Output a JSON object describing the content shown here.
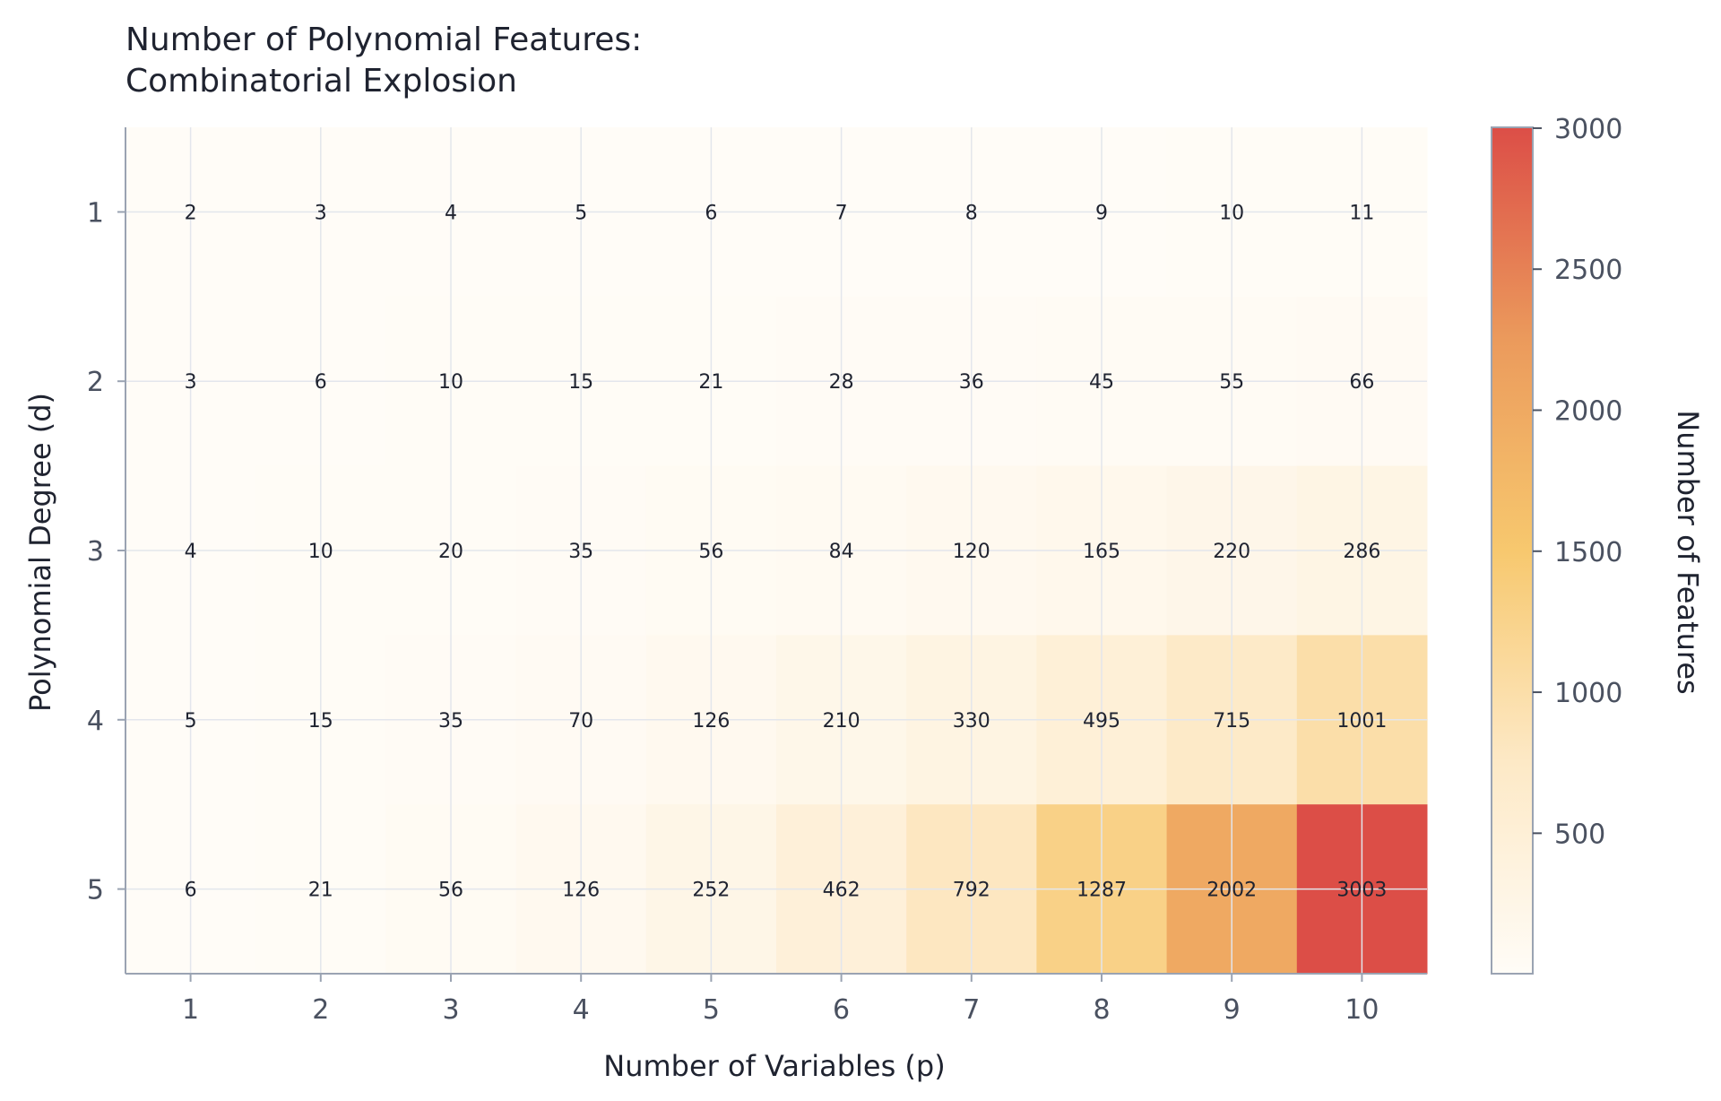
{
  "chart_data": {
    "type": "heatmap",
    "title": [
      "Number of Polynomial Features:",
      "Combinatorial Explosion"
    ],
    "xlabel": "Number of Variables (p)",
    "ylabel": "Polynomial Degree (d)",
    "x": [
      1,
      2,
      3,
      4,
      5,
      6,
      7,
      8,
      9,
      10
    ],
    "y": [
      1,
      2,
      3,
      4,
      5
    ],
    "values": [
      [
        2,
        3,
        4,
        5,
        6,
        7,
        8,
        9,
        10,
        11
      ],
      [
        3,
        6,
        10,
        15,
        21,
        28,
        36,
        45,
        55,
        66
      ],
      [
        4,
        10,
        20,
        35,
        56,
        84,
        120,
        165,
        220,
        286
      ],
      [
        5,
        15,
        35,
        70,
        126,
        210,
        330,
        495,
        715,
        1001
      ],
      [
        6,
        21,
        56,
        126,
        252,
        462,
        792,
        1287,
        2002,
        3003
      ]
    ],
    "colorbar": {
      "label": "Number of Features",
      "range": [
        2,
        3003
      ],
      "ticks": [
        500,
        1000,
        1500,
        2000,
        2500,
        3000
      ],
      "colors": [
        "#fffcf7",
        "#fde9c6",
        "#f7c86e",
        "#eb9a5c",
        "#dc4e47"
      ]
    },
    "grid": true
  }
}
